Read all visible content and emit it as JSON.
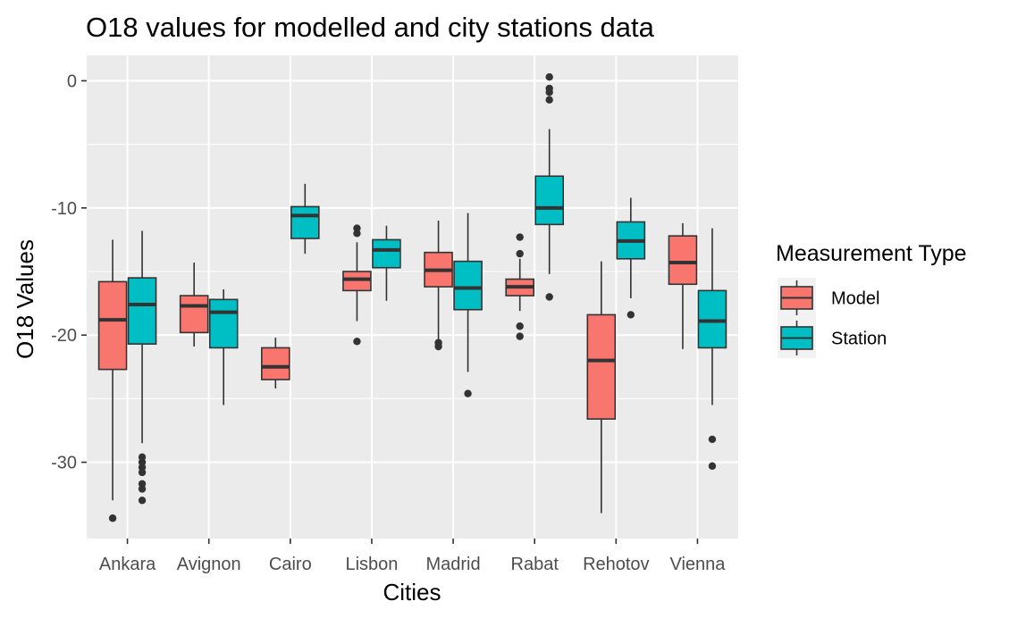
{
  "chart_data": {
    "type": "box",
    "title": "O18 values for modelled and city stations data",
    "xlabel": "Cities",
    "ylabel": "O18 Values",
    "ylim": [
      -36,
      2
    ],
    "yticks": [
      0,
      -10,
      -20,
      -30
    ],
    "ytick_labels": [
      "0",
      "-10",
      "-20",
      "-30"
    ],
    "categories": [
      "Ankara",
      "Avignon",
      "Cairo",
      "Lisbon",
      "Madrid",
      "Rabat",
      "Rehotov",
      "Vienna"
    ],
    "grid": true,
    "legend": {
      "title": "Measurement Type",
      "position": "right"
    },
    "series": [
      {
        "name": "Model",
        "color": "#F8766D",
        "boxes": [
          {
            "category": "Ankara",
            "whisker_low": -33.0,
            "q1": -22.7,
            "median": -18.8,
            "q3": -15.8,
            "whisker_high": -12.5,
            "outliers": [
              -34.4
            ]
          },
          {
            "category": "Avignon",
            "whisker_low": -20.9,
            "q1": -19.8,
            "median": -17.7,
            "q3": -16.9,
            "whisker_high": -14.3,
            "outliers": []
          },
          {
            "category": "Cairo",
            "whisker_low": -24.2,
            "q1": -23.5,
            "median": -22.5,
            "q3": -21.0,
            "whisker_high": -20.2,
            "outliers": []
          },
          {
            "category": "Lisbon",
            "whisker_low": -18.9,
            "q1": -16.5,
            "median": -15.6,
            "q3": -15.0,
            "whisker_high": -12.7,
            "outliers": [
              -20.5,
              -12.0,
              -11.6
            ]
          },
          {
            "category": "Madrid",
            "whisker_low": -20.3,
            "q1": -16.2,
            "median": -14.9,
            "q3": -13.5,
            "whisker_high": -11.0,
            "outliers": [
              -20.6,
              -20.9
            ]
          },
          {
            "category": "Rabat",
            "whisker_low": -18.1,
            "q1": -16.9,
            "median": -16.2,
            "q3": -15.6,
            "whisker_high": -14.0,
            "outliers": [
              -12.3,
              -13.6,
              -19.3,
              -20.1
            ]
          },
          {
            "category": "Rehotov",
            "whisker_low": -34.0,
            "q1": -26.6,
            "median": -22.0,
            "q3": -18.4,
            "whisker_high": -14.2,
            "outliers": []
          },
          {
            "category": "Vienna",
            "whisker_low": -21.1,
            "q1": -16.0,
            "median": -14.3,
            "q3": -12.2,
            "whisker_high": -11.2,
            "outliers": []
          }
        ]
      },
      {
        "name": "Station",
        "color": "#00BFC4",
        "boxes": [
          {
            "category": "Ankara",
            "whisker_low": -28.5,
            "q1": -20.7,
            "median": -17.6,
            "q3": -15.5,
            "whisker_high": -11.8,
            "outliers": [
              -29.6,
              -30.0,
              -30.4,
              -30.8,
              -31.7,
              -32.1,
              -33.0
            ]
          },
          {
            "category": "Avignon",
            "whisker_low": -25.5,
            "q1": -21.0,
            "median": -18.2,
            "q3": -17.2,
            "whisker_high": -16.4,
            "outliers": []
          },
          {
            "category": "Cairo",
            "whisker_low": -13.6,
            "q1": -12.4,
            "median": -10.6,
            "q3": -9.9,
            "whisker_high": -8.1,
            "outliers": []
          },
          {
            "category": "Lisbon",
            "whisker_low": -17.3,
            "q1": -14.7,
            "median": -13.3,
            "q3": -12.5,
            "whisker_high": -11.4,
            "outliers": []
          },
          {
            "category": "Madrid",
            "whisker_low": -22.9,
            "q1": -18.0,
            "median": -16.3,
            "q3": -14.2,
            "whisker_high": -10.4,
            "outliers": [
              -24.6
            ]
          },
          {
            "category": "Rabat",
            "whisker_low": -15.2,
            "q1": -11.3,
            "median": -10.0,
            "q3": -7.5,
            "whisker_high": -3.8,
            "outliers": [
              -17.0,
              -1.5,
              -0.9,
              -0.6,
              0.3
            ]
          },
          {
            "category": "Rehotov",
            "whisker_low": -17.1,
            "q1": -14.0,
            "median": -12.6,
            "q3": -11.1,
            "whisker_high": -9.2,
            "outliers": [
              -18.4
            ]
          },
          {
            "category": "Vienna",
            "whisker_low": -25.5,
            "q1": -21.0,
            "median": -18.9,
            "q3": -16.5,
            "whisker_high": -11.6,
            "outliers": [
              -28.2,
              -30.3
            ]
          }
        ]
      }
    ]
  }
}
